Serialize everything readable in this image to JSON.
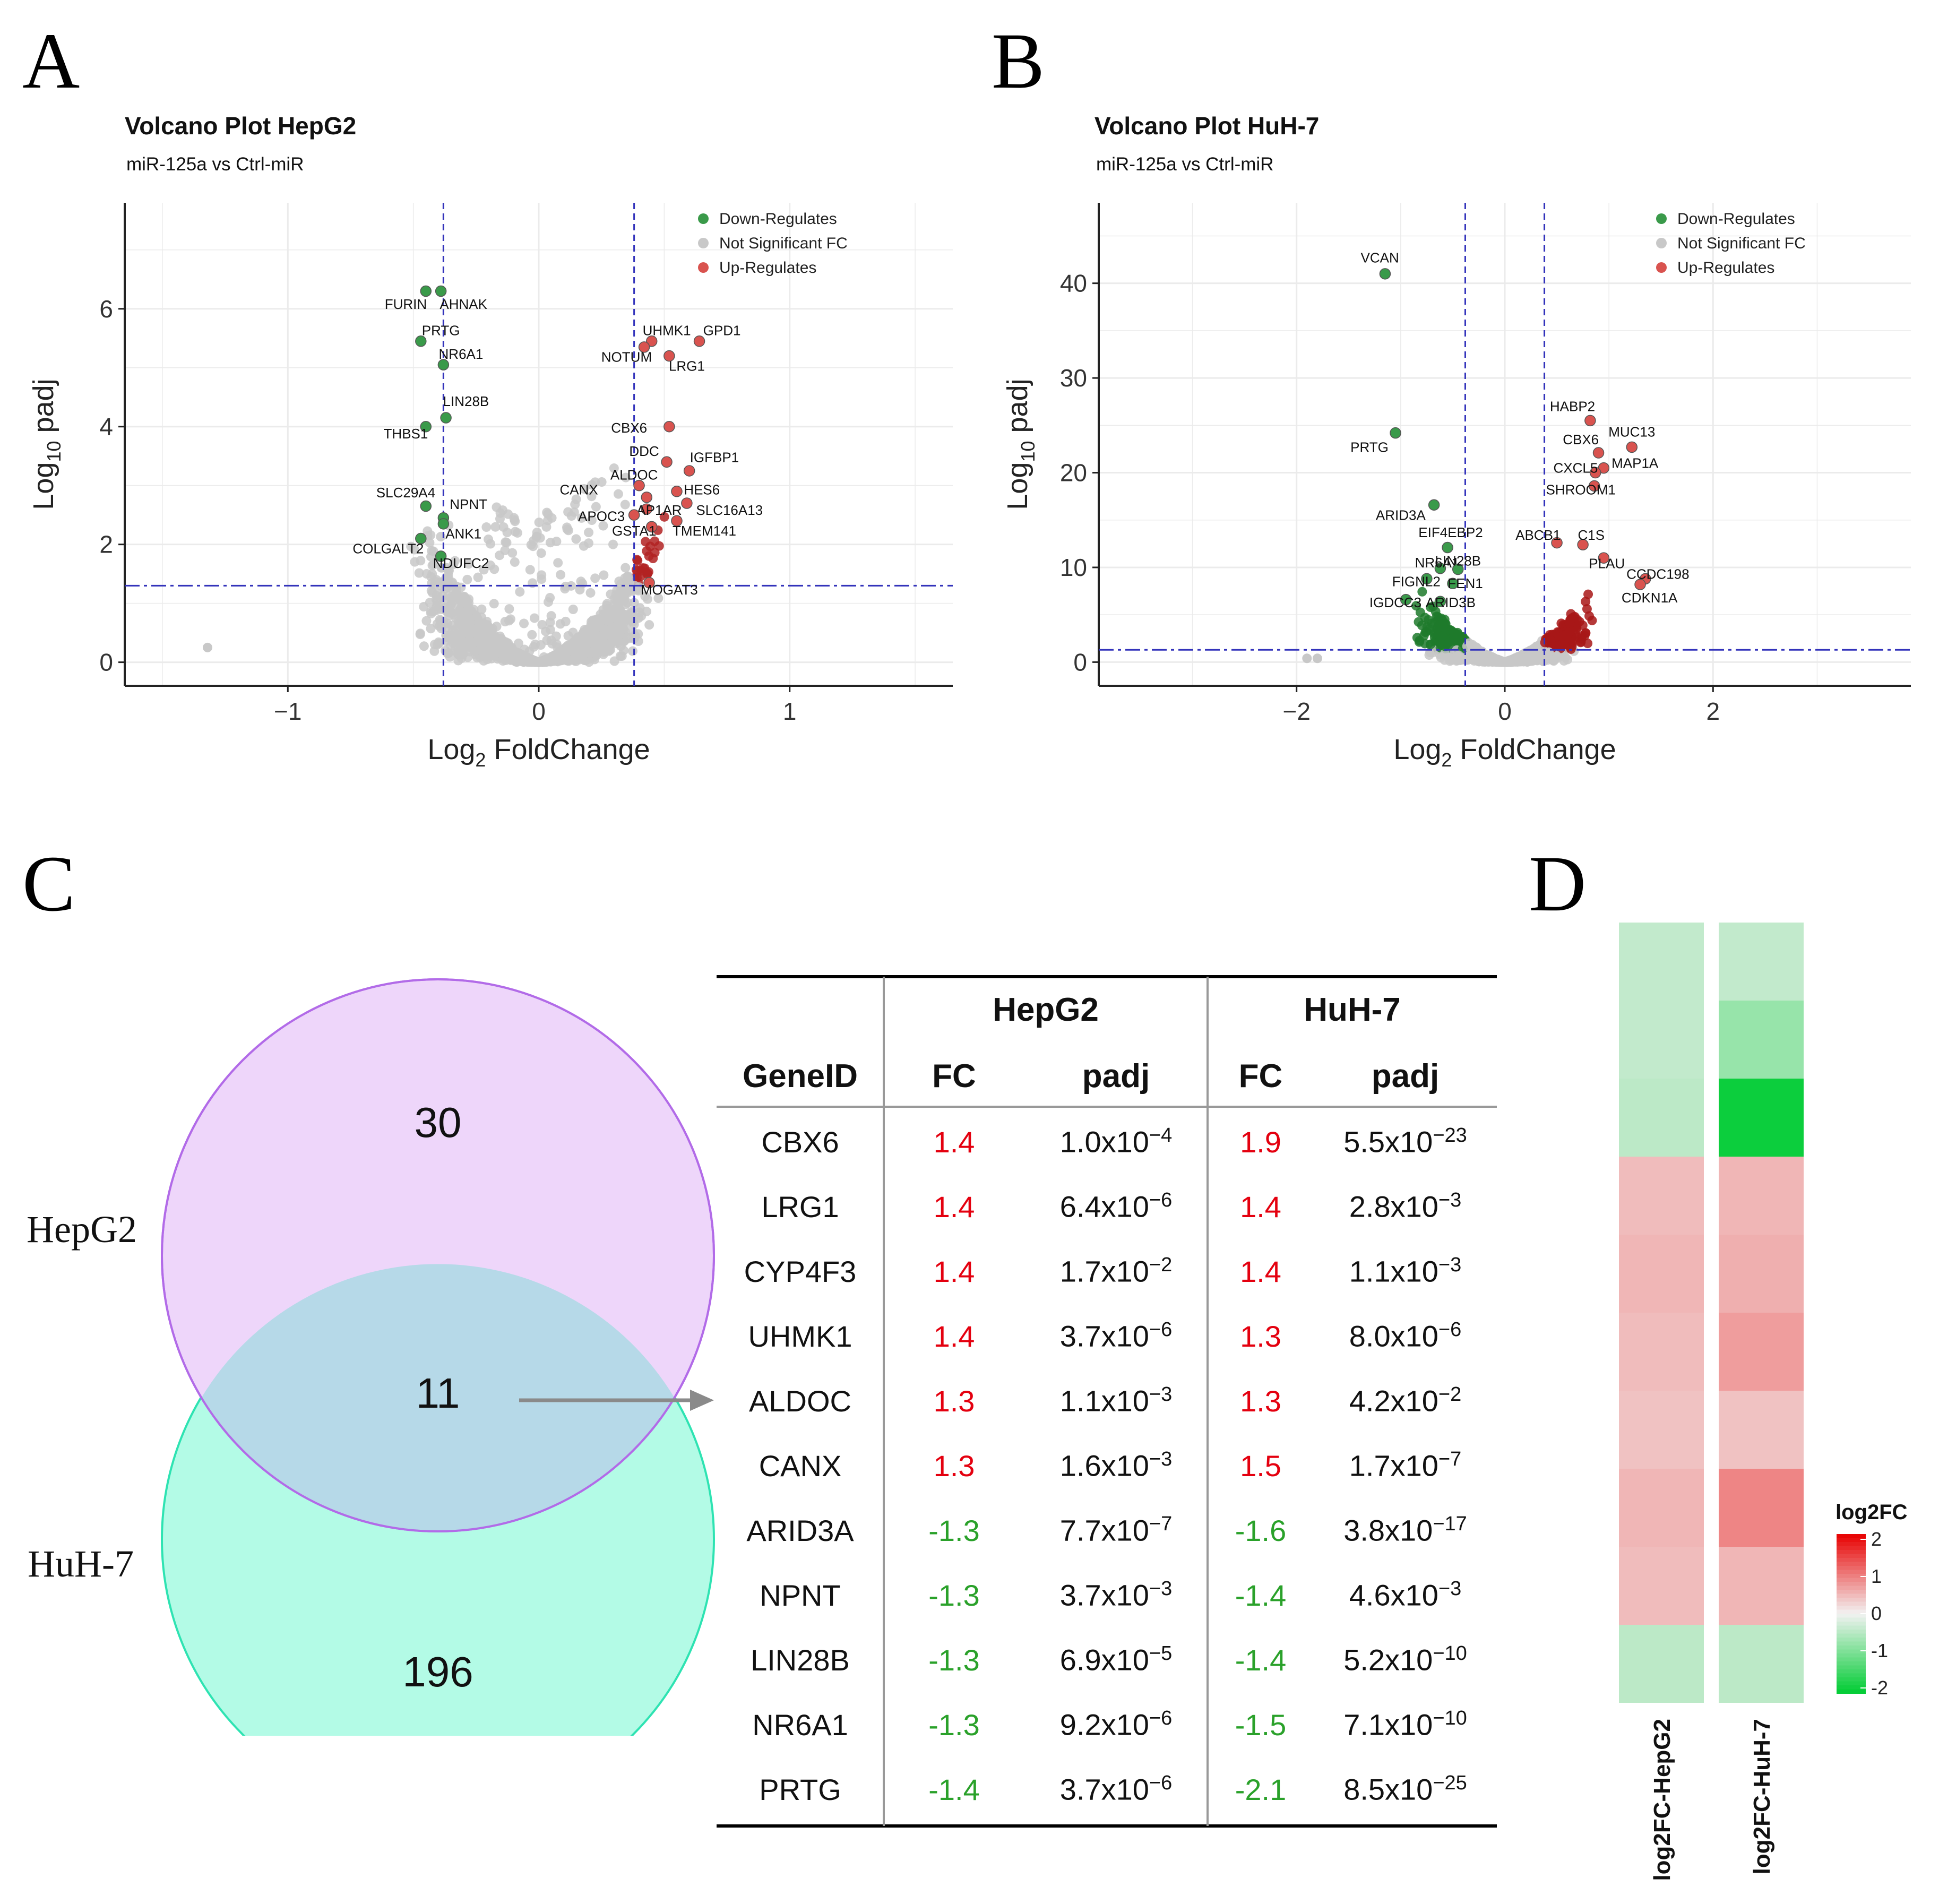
{
  "panels": {
    "A": "A",
    "B": "B",
    "C": "C",
    "D": "D"
  },
  "colors": {
    "down": "#3a9a4a",
    "ns": "#c8c8c8",
    "up": "#d9534f",
    "threshold": "#3333bb",
    "red": "#e4000f",
    "green": "#2aa12a"
  },
  "volcano": [
    {
      "id": "hepg2",
      "title": "Volcano Plot HepG2",
      "subtitle": "miR-125a vs Ctrl-miR",
      "xlabel_main": "Log",
      "xlabel_sub": "2",
      "xlabel_rest": " FoldChange",
      "ylabel_main": "Log",
      "ylabel_sub": "10",
      "ylabel_rest": " padj",
      "xlim": [
        -1.65,
        1.65
      ],
      "ylim": [
        -0.4,
        7.8
      ],
      "xticks": [
        -1,
        0,
        1
      ],
      "yticks": [
        0,
        2,
        4,
        6
      ],
      "fc_threshold": 0.38,
      "p_threshold": 1.3,
      "legend": [
        "Down-Regulates",
        "Not Significant FC",
        "Up-Regulates"
      ],
      "points": [
        {
          "gene": "FURIN",
          "x": -0.45,
          "y": 6.3,
          "group": "down",
          "label": true
        },
        {
          "gene": "AHNAK",
          "x": -0.39,
          "y": 6.3,
          "group": "down",
          "label": true
        },
        {
          "gene": "PRTG",
          "x": -0.47,
          "y": 5.45,
          "group": "down",
          "label": true
        },
        {
          "gene": "NR6A1",
          "x": -0.38,
          "y": 5.05,
          "group": "down",
          "label": true
        },
        {
          "gene": "LIN28B",
          "x": -0.37,
          "y": 4.15,
          "group": "down",
          "label": true
        },
        {
          "gene": "THBS1",
          "x": -0.45,
          "y": 4.0,
          "group": "down",
          "label": true
        },
        {
          "gene": "SLC29A4",
          "x": -0.45,
          "y": 2.65,
          "group": "down",
          "label": true
        },
        {
          "gene": "NPNT",
          "x": -0.38,
          "y": 2.45,
          "group": "down",
          "label": true
        },
        {
          "gene": "ANK1",
          "x": -0.38,
          "y": 2.35,
          "group": "down",
          "label": true
        },
        {
          "gene": "COLGALT2",
          "x": -0.47,
          "y": 2.1,
          "group": "down",
          "label": true
        },
        {
          "gene": "NDUFC2",
          "x": -0.39,
          "y": 1.8,
          "group": "down",
          "label": true
        },
        {
          "gene": "UHMK1",
          "x": 0.45,
          "y": 5.45,
          "group": "up",
          "label": true
        },
        {
          "gene": "GPD1",
          "x": 0.64,
          "y": 5.45,
          "group": "up",
          "label": true
        },
        {
          "gene": "NOTUM",
          "x": 0.42,
          "y": 5.35,
          "group": "up",
          "label": true
        },
        {
          "gene": "LRG1",
          "x": 0.52,
          "y": 5.2,
          "group": "up",
          "label": true
        },
        {
          "gene": "CBX6",
          "x": 0.52,
          "y": 4.0,
          "group": "up",
          "label": true
        },
        {
          "gene": "DDC",
          "x": 0.51,
          "y": 3.4,
          "group": "up",
          "label": true
        },
        {
          "gene": "IGFBP1",
          "x": 0.6,
          "y": 3.25,
          "group": "up",
          "label": true
        },
        {
          "gene": "ALDOC",
          "x": 0.4,
          "y": 3.0,
          "group": "up",
          "label": true
        },
        {
          "gene": "HES6",
          "x": 0.55,
          "y": 2.9,
          "group": "up",
          "label": true
        },
        {
          "gene": "CANX",
          "x": 0.43,
          "y": 2.8,
          "group": "up",
          "label": true
        },
        {
          "gene": "SLC16A13",
          "x": 0.59,
          "y": 2.7,
          "group": "up",
          "label": true
        },
        {
          "gene": "AP1AR",
          "x": 0.43,
          "y": 2.6,
          "group": "up",
          "label": true
        },
        {
          "gene": "APOC3",
          "x": 0.38,
          "y": 2.5,
          "group": "up",
          "label": true
        },
        {
          "gene": "TMEM141",
          "x": 0.55,
          "y": 2.4,
          "group": "up",
          "label": true
        },
        {
          "gene": "GSTA1",
          "x": 0.45,
          "y": 2.3,
          "group": "up",
          "label": true
        },
        {
          "gene": "MOGAT3",
          "x": 0.44,
          "y": 1.35,
          "group": "up",
          "label": true
        }
      ],
      "label_pos": [
        [
          -0.53,
          6.0
        ],
        [
          -0.3,
          6.0
        ],
        [
          -0.39,
          5.55
        ],
        [
          -0.31,
          5.15
        ],
        [
          -0.29,
          4.35
        ],
        [
          -0.53,
          3.8
        ],
        [
          -0.53,
          2.8
        ],
        [
          -0.28,
          2.6
        ],
        [
          -0.3,
          2.1
        ],
        [
          -0.6,
          1.85
        ],
        [
          -0.31,
          1.6
        ],
        [
          0.51,
          5.55
        ],
        [
          0.73,
          5.55
        ],
        [
          0.35,
          5.1
        ],
        [
          0.59,
          4.95
        ],
        [
          0.36,
          3.9
        ],
        [
          0.42,
          3.5
        ],
        [
          0.7,
          3.4
        ],
        [
          0.38,
          3.1
        ],
        [
          0.65,
          2.85
        ],
        [
          0.16,
          2.85
        ],
        [
          0.76,
          2.5
        ],
        [
          0.48,
          2.5
        ],
        [
          0.25,
          2.4
        ],
        [
          0.66,
          2.15
        ],
        [
          0.38,
          2.15
        ],
        [
          0.52,
          1.15
        ]
      ]
    },
    {
      "id": "huh7",
      "title": "Volcano Plot HuH-7",
      "subtitle": "miR-125a vs Ctrl-miR",
      "xlabel_main": "Log",
      "xlabel_sub": "2",
      "xlabel_rest": " FoldChange",
      "ylabel_main": "Log",
      "ylabel_sub": "10",
      "ylabel_rest": " padj",
      "xlim": [
        -3.9,
        3.9
      ],
      "ylim": [
        -2.5,
        48.5
      ],
      "xticks": [
        -2,
        0,
        2
      ],
      "yticks": [
        0,
        10,
        20,
        30,
        40
      ],
      "fc_threshold": 0.38,
      "p_threshold": 1.3,
      "legend": [
        "Down-Regulates",
        "Not Significant FC",
        "Up-Regulates"
      ],
      "points": [
        {
          "gene": "VCAN",
          "x": -1.15,
          "y": 41.0,
          "group": "down",
          "label": true
        },
        {
          "gene": "PRTG",
          "x": -1.05,
          "y": 24.2,
          "group": "down",
          "label": true
        },
        {
          "gene": "ARID3A",
          "x": -0.68,
          "y": 16.6,
          "group": "down",
          "label": true
        },
        {
          "gene": "EIF4EBP2",
          "x": -0.55,
          "y": 12.1,
          "group": "down",
          "label": true
        },
        {
          "gene": "NR6A1",
          "x": -0.62,
          "y": 9.9,
          "group": "down",
          "label": true
        },
        {
          "gene": "LIN28B",
          "x": -0.45,
          "y": 9.8,
          "group": "down",
          "label": true
        },
        {
          "gene": "FIGNL2",
          "x": -0.75,
          "y": 8.8,
          "group": "down",
          "label": true
        },
        {
          "gene": "FEN1",
          "x": -0.5,
          "y": 8.3,
          "group": "down",
          "label": true
        },
        {
          "gene": "IGDCC3",
          "x": -0.95,
          "y": 6.6,
          "group": "down",
          "label": true
        },
        {
          "gene": "ARID3B",
          "x": -0.62,
          "y": 6.4,
          "group": "down",
          "label": true
        },
        {
          "gene": "HABP2",
          "x": 0.82,
          "y": 25.5,
          "group": "up",
          "label": true
        },
        {
          "gene": "MUC13",
          "x": 1.22,
          "y": 22.7,
          "group": "up",
          "label": true
        },
        {
          "gene": "CBX6",
          "x": 0.9,
          "y": 22.1,
          "group": "up",
          "label": true
        },
        {
          "gene": "MAP1A",
          "x": 0.95,
          "y": 20.5,
          "group": "up",
          "label": true
        },
        {
          "gene": "CXCL5",
          "x": 0.87,
          "y": 20.0,
          "group": "up",
          "label": true
        },
        {
          "gene": "SHROOM1",
          "x": 0.86,
          "y": 18.6,
          "group": "up",
          "label": true
        },
        {
          "gene": "ABCB1",
          "x": 0.5,
          "y": 12.6,
          "group": "up",
          "label": true
        },
        {
          "gene": "C1S",
          "x": 0.75,
          "y": 12.4,
          "group": "up",
          "label": true
        },
        {
          "gene": "PLAU",
          "x": 0.95,
          "y": 11.0,
          "group": "up",
          "label": true
        },
        {
          "gene": "CCDC198",
          "x": 1.35,
          "y": 8.8,
          "group": "up",
          "label": true
        },
        {
          "gene": "CDKN1A",
          "x": 1.3,
          "y": 8.2,
          "group": "up",
          "label": true
        }
      ],
      "label_pos": [
        [
          -1.2,
          42.2
        ],
        [
          -1.3,
          22.2
        ],
        [
          -1.0,
          15.0
        ],
        [
          -0.52,
          13.2
        ],
        [
          -0.65,
          10.0
        ],
        [
          -0.45,
          10.2
        ],
        [
          -0.85,
          8.0
        ],
        [
          -0.38,
          7.8
        ],
        [
          -1.05,
          5.8
        ],
        [
          -0.52,
          5.8
        ],
        [
          0.65,
          26.5
        ],
        [
          1.22,
          23.8
        ],
        [
          0.73,
          23.0
        ],
        [
          1.25,
          20.5
        ],
        [
          0.68,
          20.0
        ],
        [
          0.73,
          17.7
        ],
        [
          0.32,
          12.9
        ],
        [
          0.83,
          12.9
        ],
        [
          0.98,
          9.9
        ],
        [
          1.47,
          8.8
        ],
        [
          1.39,
          6.3
        ]
      ]
    }
  ],
  "venn": {
    "label_a": "HepG2",
    "label_b": "HuH-7",
    "only_a": "30",
    "both": "11",
    "only_b": "196",
    "color_a": "#eed6fa",
    "stroke_a": "#b26be8",
    "color_b": "#b3fbe6",
    "stroke_b": "#2ee3b2",
    "color_overlap": "#b6d9e8"
  },
  "table": {
    "group1": "HepG2",
    "group2": "HuH-7",
    "col_gene": "GeneID",
    "col_fc": "FC",
    "col_padj": "padj",
    "rows": [
      {
        "gene": "CBX6",
        "fc1": "1.4",
        "p1": "1.0x10",
        "e1": "−4",
        "fc2": "1.9",
        "p2": "5.5x10",
        "e2": "−23",
        "dir": "up"
      },
      {
        "gene": "LRG1",
        "fc1": "1.4",
        "p1": "6.4x10",
        "e1": "−6",
        "fc2": "1.4",
        "p2": "2.8x10",
        "e2": "−3",
        "dir": "up"
      },
      {
        "gene": "CYP4F3",
        "fc1": "1.4",
        "p1": "1.7x10",
        "e1": "−2",
        "fc2": "1.4",
        "p2": "1.1x10",
        "e2": "−3",
        "dir": "up"
      },
      {
        "gene": "UHMK1",
        "fc1": "1.4",
        "p1": "3.7x10",
        "e1": "−6",
        "fc2": "1.3",
        "p2": "8.0x10",
        "e2": "−6",
        "dir": "up"
      },
      {
        "gene": "ALDOC",
        "fc1": "1.3",
        "p1": "1.1x10",
        "e1": "−3",
        "fc2": "1.3",
        "p2": "4.2x10",
        "e2": "−2",
        "dir": "up"
      },
      {
        "gene": "CANX",
        "fc1": "1.3",
        "p1": "1.6x10",
        "e1": "−3",
        "fc2": "1.5",
        "p2": "1.7x10",
        "e2": "−7",
        "dir": "up"
      },
      {
        "gene": "ARID3A",
        "fc1": "-1.3",
        "p1": "7.7x10",
        "e1": "−7",
        "fc2": "-1.6",
        "p2": "3.8x10",
        "e2": "−17",
        "dir": "down"
      },
      {
        "gene": "NPNT",
        "fc1": "-1.3",
        "p1": "3.7x10",
        "e1": "−3",
        "fc2": "-1.4",
        "p2": "4.6x10",
        "e2": "−3",
        "dir": "down"
      },
      {
        "gene": "LIN28B",
        "fc1": "-1.3",
        "p1": "6.9x10",
        "e1": "−5",
        "fc2": "-1.4",
        "p2": "5.2x10",
        "e2": "−10",
        "dir": "down"
      },
      {
        "gene": "NR6A1",
        "fc1": "-1.3",
        "p1": "9.2x10",
        "e1": "−6",
        "fc2": "-1.5",
        "p2": "7.1x10",
        "e2": "−10",
        "dir": "down"
      },
      {
        "gene": "PRTG",
        "fc1": "-1.4",
        "p1": "3.7x10",
        "e1": "−6",
        "fc2": "-2.1",
        "p2": "8.5x10",
        "e2": "−25",
        "dir": "down"
      }
    ]
  },
  "chart_data": [
    {
      "type": "scatter",
      "title": "Volcano Plot HepG2",
      "subtitle": "miR-125a vs Ctrl-miR",
      "xlabel": "Log2 FoldChange",
      "ylabel": "Log10 padj",
      "xlim": [
        -1.65,
        1.65
      ],
      "ylim": [
        -0.4,
        7.8
      ]
    },
    {
      "type": "scatter",
      "title": "Volcano Plot HuH-7",
      "subtitle": "miR-125a vs Ctrl-miR",
      "xlabel": "Log2 FoldChange",
      "ylabel": "Log10 padj",
      "xlim": [
        -3.9,
        3.9
      ],
      "ylim": [
        -2.5,
        48.5
      ]
    },
    {
      "type": "heatmap",
      "columns": [
        "log2FC-HepG2",
        "log2FC-HuH-7"
      ],
      "legend_title": "log2FC",
      "legend_ticks": [
        "2",
        "1",
        "0",
        "-1",
        "-2"
      ],
      "values": [
        [
          -0.4,
          -0.4
        ],
        [
          -0.4,
          -0.75
        ],
        [
          -0.45,
          -1.9
        ],
        [
          0.45,
          0.5
        ],
        [
          0.5,
          0.55
        ],
        [
          0.45,
          0.7
        ],
        [
          0.4,
          0.4
        ],
        [
          0.5,
          0.9
        ],
        [
          0.45,
          0.5
        ],
        [
          -0.45,
          -0.45
        ]
      ]
    }
  ]
}
